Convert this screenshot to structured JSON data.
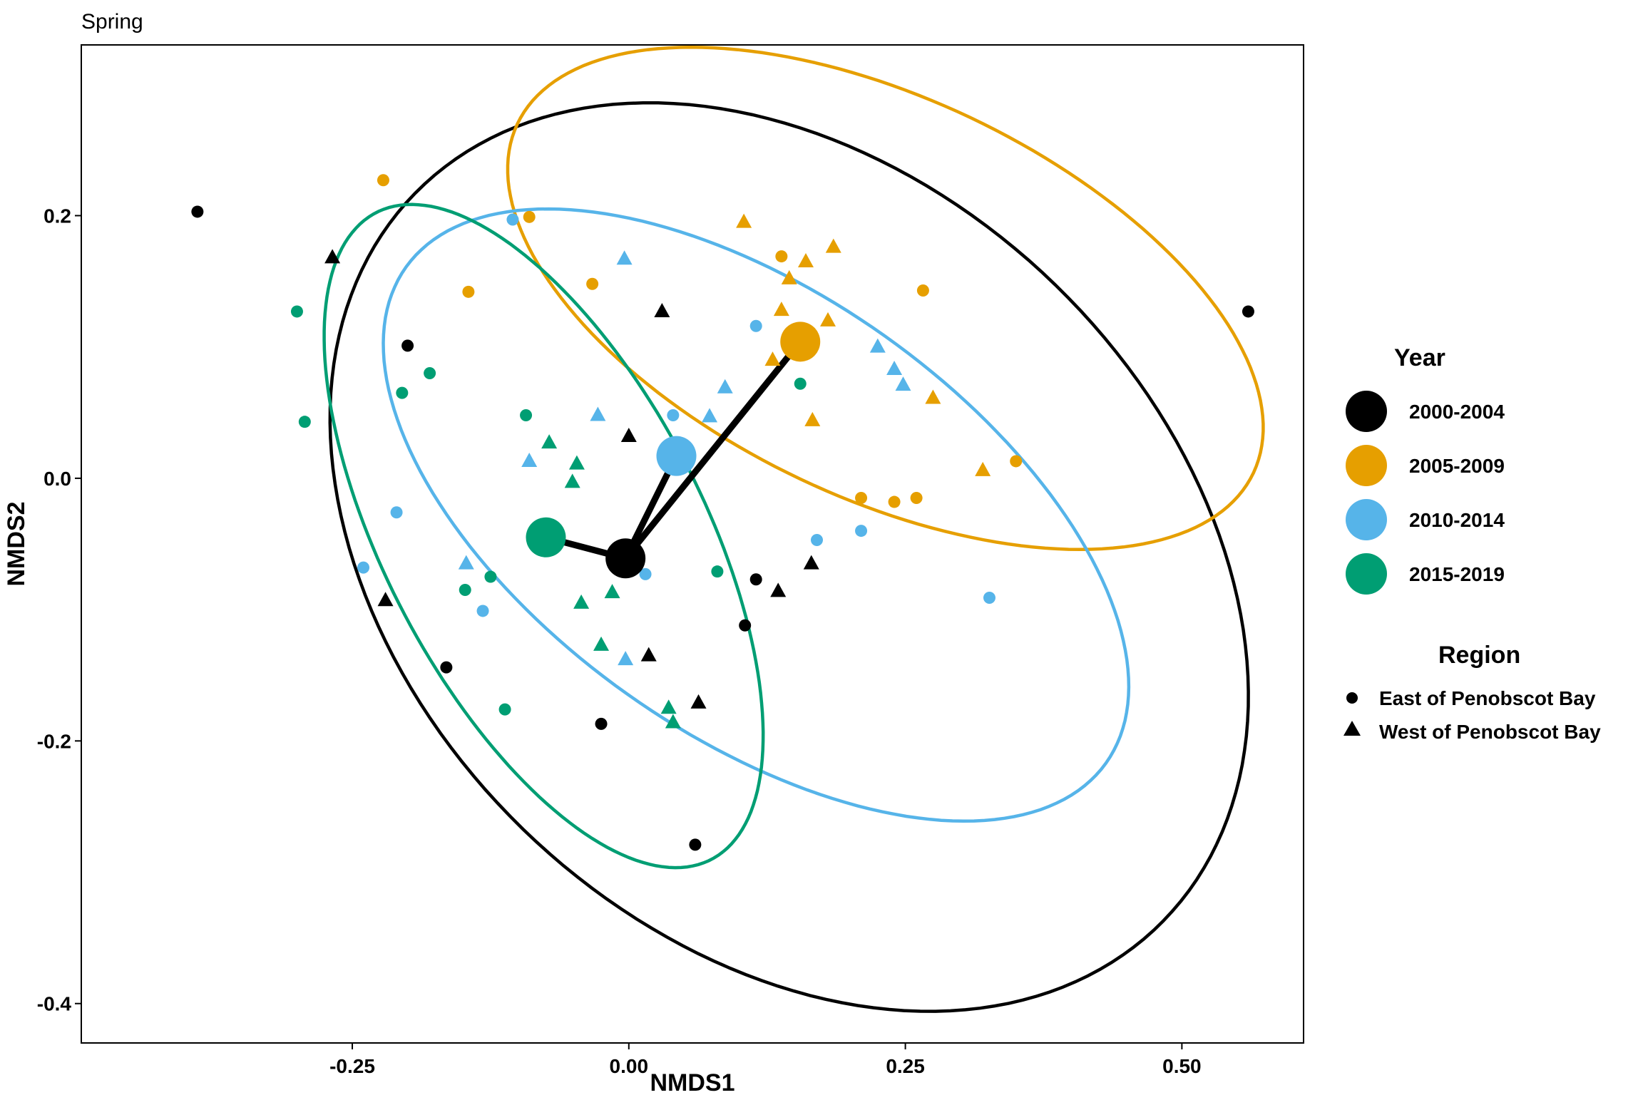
{
  "chart_data": {
    "type": "scatter",
    "title": "Spring",
    "xlabel": "NMDS1",
    "ylabel": "NMDS2",
    "xlim": [
      -0.495,
      0.61
    ],
    "ylim": [
      -0.43,
      0.33
    ],
    "xticks": [
      -0.25,
      0.0,
      0.25,
      0.5
    ],
    "xtick_labels": [
      "-0.25",
      "0.00",
      "0.25",
      "0.50"
    ],
    "yticks": [
      -0.4,
      -0.2,
      0.0,
      0.2
    ],
    "ytick_labels": [
      "-0.4",
      "-0.2",
      "0.0",
      "0.2"
    ],
    "grid": false,
    "legend": {
      "position": "right",
      "year_title": "Year",
      "region_title": "Region",
      "region_entries": [
        {
          "label": "East of Penobscot Bay",
          "shape": "circle"
        },
        {
          "label": "West of Penobscot Bay",
          "shape": "triangle"
        }
      ]
    },
    "series": [
      {
        "name": "2000-2004",
        "color": "#000000",
        "centroid": [
          -0.003,
          -0.061
        ],
        "ellipse": {
          "cx": 0.145,
          "cy": -0.06,
          "rx": 0.444,
          "ry": 0.308,
          "angle_deg": -29.5
        },
        "points": [
          {
            "x": -0.39,
            "y": 0.203,
            "shape": "circle"
          },
          {
            "x": -0.2,
            "y": 0.101,
            "shape": "circle"
          },
          {
            "x": -0.165,
            "y": -0.144,
            "shape": "circle"
          },
          {
            "x": -0.025,
            "y": -0.187,
            "shape": "circle"
          },
          {
            "x": 0.06,
            "y": -0.279,
            "shape": "circle"
          },
          {
            "x": 0.105,
            "y": -0.112,
            "shape": "circle"
          },
          {
            "x": 0.115,
            "y": -0.077,
            "shape": "circle"
          },
          {
            "x": 0.56,
            "y": 0.127,
            "shape": "circle"
          },
          {
            "x": -0.268,
            "y": 0.168,
            "shape": "triangle"
          },
          {
            "x": -0.22,
            "y": -0.093,
            "shape": "triangle"
          },
          {
            "x": 0.03,
            "y": 0.127,
            "shape": "triangle"
          },
          {
            "x": 0.0,
            "y": 0.032,
            "shape": "triangle"
          },
          {
            "x": 0.018,
            "y": -0.135,
            "shape": "triangle"
          },
          {
            "x": 0.063,
            "y": -0.171,
            "shape": "triangle"
          },
          {
            "x": 0.135,
            "y": -0.086,
            "shape": "triangle"
          },
          {
            "x": 0.165,
            "y": -0.065,
            "shape": "triangle"
          }
        ]
      },
      {
        "name": "2005-2009",
        "color": "#E69F00",
        "centroid": [
          0.155,
          0.104
        ],
        "ellipse": {
          "cx": 0.232,
          "cy": 0.137,
          "rx": 0.359,
          "ry": 0.156,
          "angle_deg": -20.0
        },
        "points": [
          {
            "x": -0.222,
            "y": 0.227,
            "shape": "circle"
          },
          {
            "x": -0.145,
            "y": 0.142,
            "shape": "circle"
          },
          {
            "x": -0.09,
            "y": 0.199,
            "shape": "circle"
          },
          {
            "x": -0.033,
            "y": 0.148,
            "shape": "circle"
          },
          {
            "x": 0.138,
            "y": 0.169,
            "shape": "circle"
          },
          {
            "x": 0.21,
            "y": -0.015,
            "shape": "circle"
          },
          {
            "x": 0.24,
            "y": -0.018,
            "shape": "circle"
          },
          {
            "x": 0.26,
            "y": -0.015,
            "shape": "circle"
          },
          {
            "x": 0.266,
            "y": 0.143,
            "shape": "circle"
          },
          {
            "x": 0.35,
            "y": 0.013,
            "shape": "circle"
          },
          {
            "x": 0.104,
            "y": 0.195,
            "shape": "triangle"
          },
          {
            "x": 0.145,
            "y": 0.152,
            "shape": "triangle"
          },
          {
            "x": 0.16,
            "y": 0.165,
            "shape": "triangle"
          },
          {
            "x": 0.185,
            "y": 0.176,
            "shape": "triangle"
          },
          {
            "x": 0.138,
            "y": 0.128,
            "shape": "triangle"
          },
          {
            "x": 0.18,
            "y": 0.12,
            "shape": "triangle"
          },
          {
            "x": 0.13,
            "y": 0.09,
            "shape": "triangle"
          },
          {
            "x": 0.166,
            "y": 0.044,
            "shape": "triangle"
          },
          {
            "x": 0.275,
            "y": 0.061,
            "shape": "triangle"
          },
          {
            "x": 0.32,
            "y": 0.006,
            "shape": "triangle"
          }
        ]
      },
      {
        "name": "2010-2014",
        "color": "#56B4E9",
        "centroid": [
          0.043,
          0.017
        ],
        "ellipse": {
          "cx": 0.115,
          "cy": -0.028,
          "rx": 0.37,
          "ry": 0.176,
          "angle_deg": -28.0
        },
        "points": [
          {
            "x": -0.105,
            "y": 0.197,
            "shape": "circle"
          },
          {
            "x": 0.115,
            "y": 0.116,
            "shape": "circle"
          },
          {
            "x": 0.04,
            "y": 0.048,
            "shape": "circle"
          },
          {
            "x": -0.21,
            "y": -0.026,
            "shape": "circle"
          },
          {
            "x": -0.24,
            "y": -0.068,
            "shape": "circle"
          },
          {
            "x": -0.132,
            "y": -0.101,
            "shape": "circle"
          },
          {
            "x": 0.015,
            "y": -0.073,
            "shape": "circle"
          },
          {
            "x": 0.17,
            "y": -0.047,
            "shape": "circle"
          },
          {
            "x": 0.21,
            "y": -0.04,
            "shape": "circle"
          },
          {
            "x": 0.326,
            "y": -0.091,
            "shape": "circle"
          },
          {
            "x": -0.004,
            "y": 0.167,
            "shape": "triangle"
          },
          {
            "x": 0.225,
            "y": 0.1,
            "shape": "triangle"
          },
          {
            "x": 0.24,
            "y": 0.083,
            "shape": "triangle"
          },
          {
            "x": 0.248,
            "y": 0.071,
            "shape": "triangle"
          },
          {
            "x": 0.087,
            "y": 0.069,
            "shape": "triangle"
          },
          {
            "x": 0.073,
            "y": 0.047,
            "shape": "triangle"
          },
          {
            "x": -0.028,
            "y": 0.048,
            "shape": "triangle"
          },
          {
            "x": -0.09,
            "y": 0.013,
            "shape": "triangle"
          },
          {
            "x": -0.147,
            "y": -0.065,
            "shape": "triangle"
          },
          {
            "x": -0.003,
            "y": -0.138,
            "shape": "triangle"
          }
        ]
      },
      {
        "name": "2015-2019",
        "color": "#009E73",
        "centroid": [
          -0.075,
          -0.045
        ],
        "ellipse": {
          "cx": -0.077,
          "cy": -0.044,
          "rx": 0.29,
          "ry": 0.138,
          "angle_deg": -56.0
        },
        "points": [
          {
            "x": -0.3,
            "y": 0.127,
            "shape": "circle"
          },
          {
            "x": -0.293,
            "y": 0.043,
            "shape": "circle"
          },
          {
            "x": -0.205,
            "y": 0.065,
            "shape": "circle"
          },
          {
            "x": -0.18,
            "y": 0.08,
            "shape": "circle"
          },
          {
            "x": -0.093,
            "y": 0.048,
            "shape": "circle"
          },
          {
            "x": -0.148,
            "y": -0.085,
            "shape": "circle"
          },
          {
            "x": -0.125,
            "y": -0.075,
            "shape": "circle"
          },
          {
            "x": -0.112,
            "y": -0.176,
            "shape": "circle"
          },
          {
            "x": 0.08,
            "y": -0.071,
            "shape": "circle"
          },
          {
            "x": 0.155,
            "y": 0.072,
            "shape": "circle"
          },
          {
            "x": -0.072,
            "y": 0.027,
            "shape": "triangle"
          },
          {
            "x": -0.047,
            "y": 0.011,
            "shape": "triangle"
          },
          {
            "x": -0.051,
            "y": -0.003,
            "shape": "triangle"
          },
          {
            "x": -0.043,
            "y": -0.095,
            "shape": "triangle"
          },
          {
            "x": -0.015,
            "y": -0.087,
            "shape": "triangle"
          },
          {
            "x": -0.025,
            "y": -0.127,
            "shape": "triangle"
          },
          {
            "x": 0.036,
            "y": -0.175,
            "shape": "triangle"
          },
          {
            "x": 0.04,
            "y": -0.186,
            "shape": "triangle"
          }
        ]
      }
    ]
  }
}
